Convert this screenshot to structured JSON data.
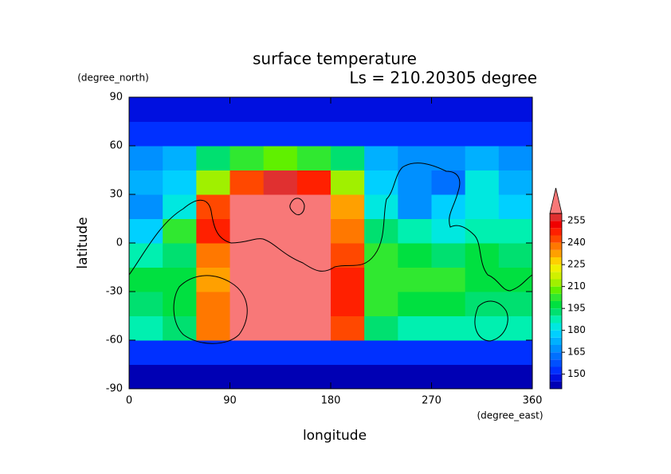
{
  "chart_data": {
    "type": "contour",
    "title": "surface temperature",
    "subtitle": "Ls = 210.20305 degree",
    "x_label": "longitude",
    "y_label": "latitude",
    "x_units": "(degree_east)",
    "y_units": "(degree_north)",
    "xlim": [
      0,
      360
    ],
    "ylim": [
      -90,
      90
    ],
    "xticks": [
      0,
      90,
      180,
      270,
      360
    ],
    "yticks": [
      -90,
      -60,
      -30,
      0,
      30,
      60,
      90
    ],
    "x": [
      15,
      45,
      75,
      105,
      135,
      165,
      195,
      225,
      255,
      285,
      315,
      345
    ],
    "y": [
      -82.5,
      -67.5,
      -52.5,
      -37.5,
      -22.5,
      -7.5,
      7.5,
      22.5,
      37.5,
      52.5,
      67.5,
      82.5
    ],
    "z": [
      [
        142,
        142,
        142,
        142,
        142,
        142,
        142,
        142,
        142,
        142,
        142,
        142
      ],
      [
        150,
        150,
        150,
        150,
        150,
        150,
        150,
        150,
        150,
        150,
        150,
        150
      ],
      [
        185,
        190,
        235,
        262,
        262,
        262,
        240,
        190,
        185,
        185,
        185,
        185
      ],
      [
        190,
        195,
        235,
        262,
        262,
        262,
        245,
        200,
        195,
        195,
        190,
        190
      ],
      [
        195,
        195,
        230,
        262,
        262,
        262,
        245,
        200,
        200,
        200,
        195,
        195
      ],
      [
        185,
        190,
        235,
        262,
        262,
        262,
        240,
        200,
        195,
        190,
        195,
        190
      ],
      [
        175,
        200,
        245,
        262,
        262,
        262,
        235,
        190,
        185,
        180,
        185,
        185
      ],
      [
        165,
        180,
        240,
        262,
        262,
        262,
        230,
        180,
        165,
        175,
        180,
        175
      ],
      [
        170,
        175,
        210,
        240,
        255,
        245,
        210,
        175,
        165,
        160,
        180,
        170
      ],
      [
        165,
        170,
        190,
        200,
        205,
        200,
        190,
        170,
        165,
        165,
        170,
        165
      ],
      [
        150,
        150,
        150,
        150,
        150,
        150,
        150,
        150,
        150,
        150,
        150,
        150
      ],
      [
        145,
        145,
        145,
        145,
        145,
        145,
        145,
        145,
        145,
        145,
        145,
        145
      ]
    ],
    "levels": [
      140,
      145,
      150,
      155,
      160,
      165,
      170,
      175,
      180,
      185,
      190,
      195,
      200,
      205,
      210,
      215,
      220,
      225,
      230,
      235,
      240,
      245,
      250,
      255,
      260
    ],
    "colorbar_ticks": [
      150,
      165,
      180,
      195,
      210,
      225,
      240,
      255
    ],
    "colors": [
      "#0000b4",
      "#0010e0",
      "#0030ff",
      "#0050ff",
      "#0070ff",
      "#0090ff",
      "#00b0ff",
      "#00d0ff",
      "#00e8e0",
      "#00f0b0",
      "#00e070",
      "#00e040",
      "#30e830",
      "#60f000",
      "#a0f000",
      "#d0f000",
      "#f0f000",
      "#ffd000",
      "#ffa000",
      "#ff7800",
      "#ff4800",
      "#ff2000",
      "#f00000",
      "#e03030"
    ],
    "over_color": "#f87878"
  }
}
